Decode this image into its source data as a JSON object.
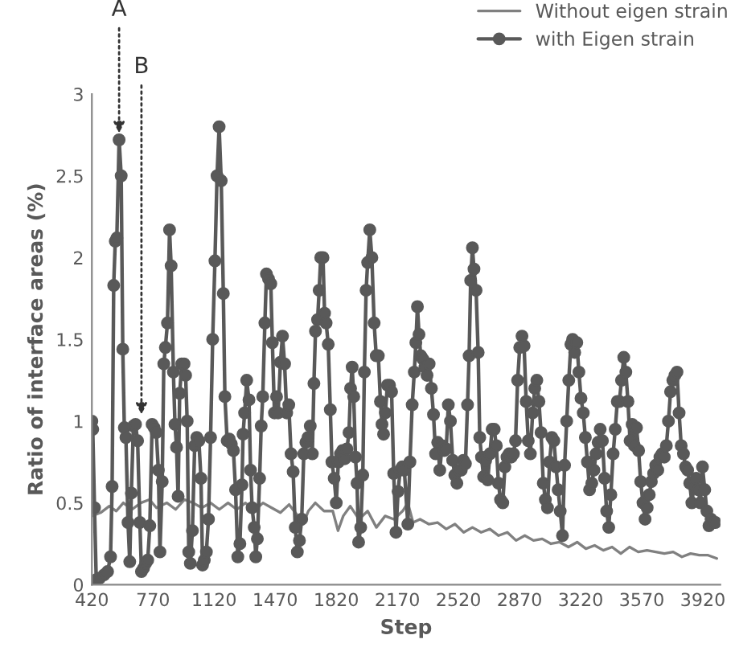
{
  "chart_data": {
    "type": "line",
    "xlabel": "Step",
    "ylabel": "Ratio of interface areas (%)",
    "xlim": [
      420,
      4020
    ],
    "xticks": [
      420,
      770,
      1120,
      1470,
      1820,
      2170,
      2520,
      2870,
      3220,
      3570,
      3920
    ],
    "ylim": [
      0,
      3
    ],
    "yticks": [
      0,
      0.5,
      1,
      1.5,
      2,
      2.5,
      3
    ],
    "grid": false,
    "legend": "top right",
    "annotations": [
      {
        "text": "A",
        "x": 576,
        "y": 2.72
      },
      {
        "text": "B",
        "x": 704,
        "y": 1.0
      }
    ],
    "series": [
      {
        "name": "Without eigen strain",
        "color": "#808080",
        "marker": "none",
        "x": [
          420,
          470,
          520,
          560,
          600,
          650,
          700,
          750,
          790,
          850,
          900,
          950,
          1000,
          1050,
          1100,
          1150,
          1200,
          1250,
          1300,
          1350,
          1400,
          1450,
          1500,
          1550,
          1600,
          1630,
          1660,
          1700,
          1750,
          1800,
          1830,
          1860,
          1900,
          1950,
          2000,
          2050,
          2100,
          2150,
          2200,
          2230,
          2260,
          2300,
          2350,
          2400,
          2450,
          2500,
          2550,
          2600,
          2650,
          2700,
          2750,
          2800,
          2850,
          2900,
          2950,
          3000,
          3050,
          3100,
          3150,
          3200,
          3250,
          3300,
          3350,
          3400,
          3450,
          3500,
          3550,
          3600,
          3650,
          3700,
          3750,
          3800,
          3850,
          3900,
          3950,
          4000
        ],
        "values": [
          0.42,
          0.44,
          0.48,
          0.45,
          0.5,
          0.46,
          0.5,
          0.52,
          0.47,
          0.5,
          0.46,
          0.52,
          0.5,
          0.47,
          0.5,
          0.46,
          0.5,
          0.46,
          0.5,
          0.45,
          0.5,
          0.47,
          0.44,
          0.49,
          0.42,
          0.37,
          0.45,
          0.5,
          0.45,
          0.45,
          0.33,
          0.42,
          0.48,
          0.4,
          0.45,
          0.35,
          0.42,
          0.4,
          0.45,
          0.5,
          0.38,
          0.4,
          0.37,
          0.38,
          0.34,
          0.37,
          0.32,
          0.35,
          0.32,
          0.34,
          0.3,
          0.32,
          0.27,
          0.3,
          0.27,
          0.28,
          0.25,
          0.26,
          0.23,
          0.26,
          0.22,
          0.24,
          0.21,
          0.23,
          0.19,
          0.23,
          0.2,
          0.21,
          0.2,
          0.19,
          0.2,
          0.17,
          0.19,
          0.18,
          0.18,
          0.16
        ]
      },
      {
        "name": "with Eigen strain",
        "color": "#595959",
        "marker": "circle",
        "x": [
          420,
          425,
          435,
          445,
          465,
          490,
          510,
          527,
          536,
          545,
          554,
          563,
          576,
          588,
          597,
          606,
          615,
          627,
          637,
          646,
          658,
          670,
          682,
          695,
          704,
          716,
          728,
          740,
          752,
          765,
          777,
          789,
          801,
          810,
          823,
          832,
          841,
          853,
          865,
          874,
          887,
          896,
          905,
          914,
          923,
          935,
          948,
          957,
          966,
          975,
          984,
          996,
          1009,
          1021,
          1033,
          1045,
          1054,
          1064,
          1076,
          1088,
          1100,
          1112,
          1125,
          1137,
          1149,
          1161,
          1173,
          1182,
          1195,
          1207,
          1219,
          1231,
          1243,
          1256,
          1268,
          1280,
          1286,
          1295,
          1307,
          1320,
          1329,
          1338,
          1350,
          1359,
          1368,
          1381,
          1390,
          1399,
          1411,
          1420,
          1432,
          1445,
          1454,
          1466,
          1478,
          1487,
          1500,
          1512,
          1524,
          1536,
          1548,
          1561,
          1573,
          1585,
          1597,
          1609,
          1622,
          1634,
          1646,
          1658,
          1671,
          1683,
          1692,
          1701,
          1713,
          1722,
          1731,
          1744,
          1753,
          1762,
          1774,
          1786,
          1795,
          1808,
          1820,
          1832,
          1844,
          1856,
          1869,
          1881,
          1893,
          1902,
          1911,
          1920,
          1930,
          1939,
          1948,
          1960,
          1972,
          1981,
          1991,
          2000,
          2012,
          2024,
          2037,
          2049,
          2061,
          2073,
          2082,
          2091,
          2101,
          2113,
          2125,
          2137,
          2149,
          2162,
          2174,
          2186,
          2198,
          2210,
          2230,
          2242,
          2255,
          2267,
          2276,
          2285,
          2294,
          2304,
          2316,
          2328,
          2340,
          2352,
          2365,
          2377,
          2389,
          2401,
          2413,
          2426,
          2438,
          2450,
          2462,
          2474,
          2487,
          2499,
          2511,
          2523,
          2536,
          2548,
          2560,
          2572,
          2581,
          2590,
          2600,
          2609,
          2621,
          2633,
          2642,
          2652,
          2664,
          2676,
          2688,
          2700,
          2713,
          2725,
          2737,
          2749,
          2761,
          2774,
          2786,
          2798,
          2810,
          2822,
          2835,
          2847,
          2859,
          2871,
          2884,
          2896,
          2908,
          2920,
          2932,
          2945,
          2957,
          2969,
          2981,
          2993,
          3006,
          3018,
          3030,
          3042,
          3055,
          3067,
          3079,
          3091,
          3103,
          3116,
          3128,
          3140,
          3152,
          3164,
          3174,
          3186,
          3198,
          3210,
          3222,
          3235,
          3247,
          3259,
          3271,
          3284,
          3296,
          3308,
          3320,
          3332,
          3345,
          3357,
          3369,
          3381,
          3393,
          3406,
          3418,
          3430,
          3442,
          3454,
          3467,
          3479,
          3491,
          3503,
          3515,
          3528,
          3540,
          3552,
          3564,
          3577,
          3589,
          3601,
          3613,
          3625,
          3638,
          3650,
          3662,
          3674,
          3686,
          3699,
          3711,
          3723,
          3735,
          3748,
          3760,
          3772,
          3784,
          3796,
          3809,
          3821,
          3833,
          3845,
          3857,
          3869,
          3882,
          3894,
          3906,
          3918,
          3931,
          3943,
          3955,
          3967,
          3980,
          3992
        ],
        "values": [
          1.0,
          0.95,
          0.47,
          0.03,
          0.04,
          0.06,
          0.08,
          0.17,
          0.6,
          1.83,
          2.1,
          2.12,
          2.72,
          2.5,
          1.44,
          0.96,
          0.9,
          0.38,
          0.14,
          0.56,
          0.97,
          0.98,
          0.88,
          0.38,
          0.08,
          0.1,
          0.13,
          0.15,
          0.36,
          0.98,
          0.96,
          0.93,
          0.7,
          0.2,
          0.63,
          1.35,
          1.45,
          1.6,
          2.17,
          1.95,
          1.3,
          0.98,
          0.84,
          0.54,
          1.17,
          1.35,
          1.35,
          1.28,
          1.0,
          0.2,
          0.13,
          0.33,
          0.85,
          0.9,
          0.88,
          0.65,
          0.12,
          0.15,
          0.2,
          0.4,
          0.9,
          1.5,
          1.98,
          2.5,
          2.8,
          2.47,
          1.78,
          1.15,
          0.88,
          0.89,
          0.86,
          0.82,
          0.58,
          0.17,
          0.25,
          0.61,
          0.92,
          1.05,
          1.25,
          1.13,
          0.7,
          0.47,
          0.35,
          0.17,
          0.28,
          0.65,
          0.97,
          1.15,
          1.6,
          1.9,
          1.87,
          1.84,
          1.48,
          1.05,
          1.15,
          1.05,
          1.36,
          1.52,
          1.35,
          1.05,
          1.1,
          0.8,
          0.69,
          0.35,
          0.2,
          0.27,
          0.4,
          0.8,
          0.87,
          0.9,
          0.97,
          0.8,
          1.23,
          1.55,
          1.62,
          1.8,
          2.0,
          2.0,
          1.66,
          1.6,
          1.47,
          1.07,
          0.75,
          0.65,
          0.5,
          0.75,
          0.8,
          0.82,
          0.77,
          0.83,
          0.93,
          1.2,
          1.33,
          1.15,
          0.78,
          0.62,
          0.26,
          0.35,
          0.67,
          1.3,
          1.8,
          1.97,
          2.17,
          2.0,
          1.6,
          1.4,
          1.4,
          1.12,
          0.98,
          0.92,
          1.05,
          1.22,
          1.22,
          1.18,
          0.68,
          0.32,
          0.57,
          0.7,
          0.72,
          0.7,
          0.37,
          0.75,
          1.1,
          1.3,
          1.48,
          1.7,
          1.53,
          1.4,
          1.38,
          1.33,
          1.28,
          1.35,
          1.2,
          1.04,
          0.8,
          0.87,
          0.7,
          0.85,
          0.82,
          0.83,
          1.1,
          1.0,
          0.76,
          0.67,
          0.62,
          0.7,
          0.7,
          0.76,
          0.74,
          1.1,
          1.4,
          1.86,
          2.06,
          1.93,
          1.8,
          1.42,
          0.9,
          0.78,
          0.66,
          0.76,
          0.64,
          0.8,
          0.95,
          0.95,
          0.85,
          0.62,
          0.52,
          0.5,
          0.72,
          0.78,
          0.8,
          0.78,
          0.8,
          0.88,
          1.25,
          1.45,
          1.52,
          1.46,
          1.12,
          0.88,
          0.8,
          1.05,
          1.2,
          1.25,
          1.12,
          0.93,
          0.62,
          0.52,
          0.47,
          0.75,
          0.9,
          0.88,
          0.72,
          0.58,
          0.45,
          0.3,
          0.73,
          1.0,
          1.25,
          1.47,
          1.5,
          1.42,
          1.48,
          1.3,
          1.14,
          1.05,
          0.9,
          0.75,
          0.58,
          0.62,
          0.7,
          0.8,
          0.87,
          0.95,
          0.88,
          0.65,
          0.45,
          0.35,
          0.55,
          0.8,
          0.95,
          1.12,
          1.12,
          1.25,
          1.39,
          1.3,
          1.12,
          0.88,
          0.98,
          0.85,
          0.96,
          0.82,
          0.63,
          0.5,
          0.4,
          0.47,
          0.55,
          0.63,
          0.68,
          0.73,
          0.7,
          0.78,
          0.8,
          0.78,
          0.85,
          1.0,
          1.18,
          1.25,
          1.28,
          1.3,
          1.05,
          0.85,
          0.8,
          0.72,
          0.7,
          0.62,
          0.5,
          0.6,
          0.65,
          0.58,
          0.5,
          0.72,
          0.58,
          0.45,
          0.36,
          0.4,
          0.38,
          0.38
        ]
      }
    ]
  }
}
